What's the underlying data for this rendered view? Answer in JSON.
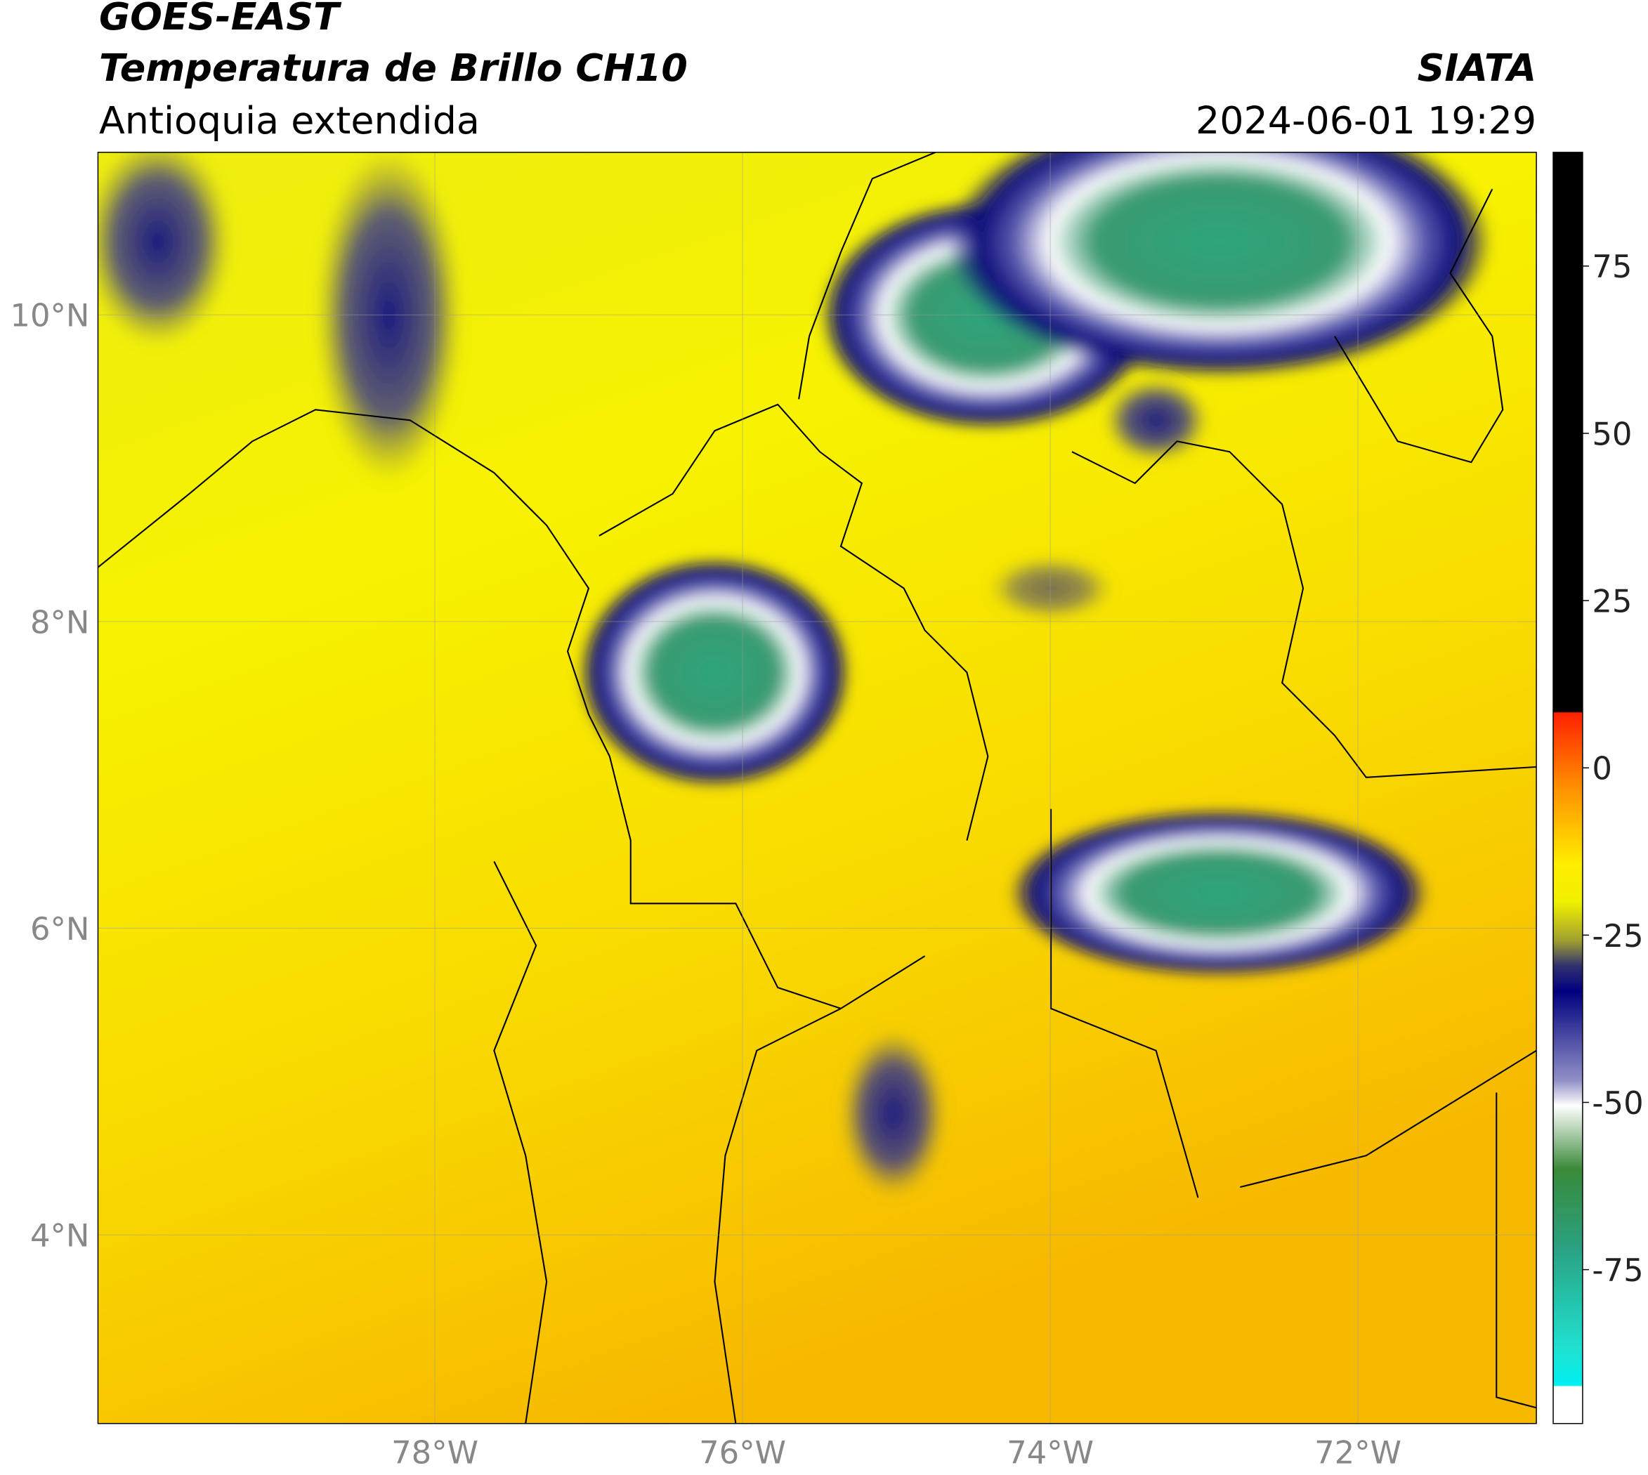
{
  "header": {
    "satellite": "GOES-EAST",
    "product": "Temperatura de Brillo CH10",
    "region": "Antioquia extendida",
    "organization": "SIATA",
    "datetime": "2024-06-01 19:29"
  },
  "map": {
    "xlim": [
      -80.19,
      -70.84
    ],
    "ylim": [
      2.77,
      11.06
    ],
    "lon_ticks": [
      {
        "value": -78,
        "label": "78°W"
      },
      {
        "value": -76,
        "label": "76°W"
      },
      {
        "value": -74,
        "label": "74°W"
      },
      {
        "value": -72,
        "label": "72°W"
      }
    ],
    "lat_ticks": [
      {
        "value": 10,
        "label": "10°N"
      },
      {
        "value": 8,
        "label": "8°N"
      },
      {
        "value": 6,
        "label": "6°N"
      },
      {
        "value": 4,
        "label": "4°N"
      }
    ],
    "grid": true
  },
  "colorbar": {
    "lim": [
      -98,
      92
    ],
    "ticks": [
      75,
      50,
      25,
      0,
      -25,
      -50,
      -75
    ]
  }
}
